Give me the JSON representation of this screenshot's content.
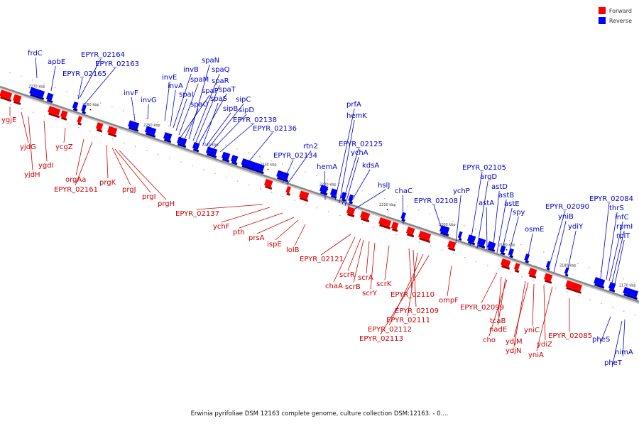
{
  "legend": {
    "forward_label": "Forward",
    "reverse_label": "Reverse",
    "forward_color": "#ff0000",
    "reverse_color": "#0000ff"
  },
  "caption": "Erwinia pyrifoliae DSM 12163 complete genome, culture collection DSM:12163. - 0....",
  "colors": {
    "axis": "#888888",
    "label_forward": "#cc0000",
    "label_reverse": "#0000cc"
  },
  "ticks": [
    "2270 kbp",
    "2260 kbp",
    "2250 kbp",
    "2240 kbp",
    "2230 kbp",
    "2220 kbp",
    "2210 kbp",
    "2200 kbp",
    "2190 kbp",
    "2180 kbp",
    "2170 kbp"
  ],
  "genes_reverse": [
    "frdC",
    "apbE",
    "EPYR_02165",
    "EPYR_02164",
    "EPYR_02163",
    "invF",
    "invG",
    "invE",
    "invA",
    "invB",
    "spaI",
    "spaM",
    "spaP",
    "spaO",
    "spaN",
    "spaQ",
    "spaR",
    "spaT",
    "spaS",
    "sipB",
    "sipC",
    "sipD",
    "EPYR_02138",
    "EPYR_02136",
    "EPYR_02134",
    "rtn2",
    "hemA",
    "prfA",
    "hemK",
    "EPYR_02125",
    "ychA",
    "kdsA",
    "hslJ",
    "chaC",
    "EPYR_02108",
    "ychP",
    "EPYR_02105",
    "argD",
    "astA",
    "astD",
    "astB",
    "astE",
    "spy",
    "osmE",
    "EPYR_02090",
    "yniB",
    "ydiY",
    "EPYR_02084",
    "thrS",
    "infC",
    "rpmI",
    "rplT",
    "pheS",
    "himA",
    "pheT"
  ],
  "genes_forward": [
    "ygjE",
    "yjdG",
    "yjdH",
    "ygdI",
    "ycgZ",
    "orgAa",
    "EPYR_02161",
    "prgK",
    "prgJ",
    "prgI",
    "prgH",
    "EPYR_02137",
    "ychF",
    "pth",
    "prsA",
    "ispE",
    "lolB",
    "EPYR_02121",
    "chaA",
    "scrR",
    "scrB",
    "scrA",
    "scrY",
    "scrK",
    "EPYR_02110",
    "EPYR_02109",
    "EPYR_02111",
    "EPYR_02112",
    "EPYR_02113",
    "ompF",
    "EPYR_02099",
    "tcaB",
    "nadE",
    "cho",
    "yniC",
    "ydjM",
    "ydjN",
    "ydiZ",
    "yniA",
    "EPYR_02085"
  ]
}
